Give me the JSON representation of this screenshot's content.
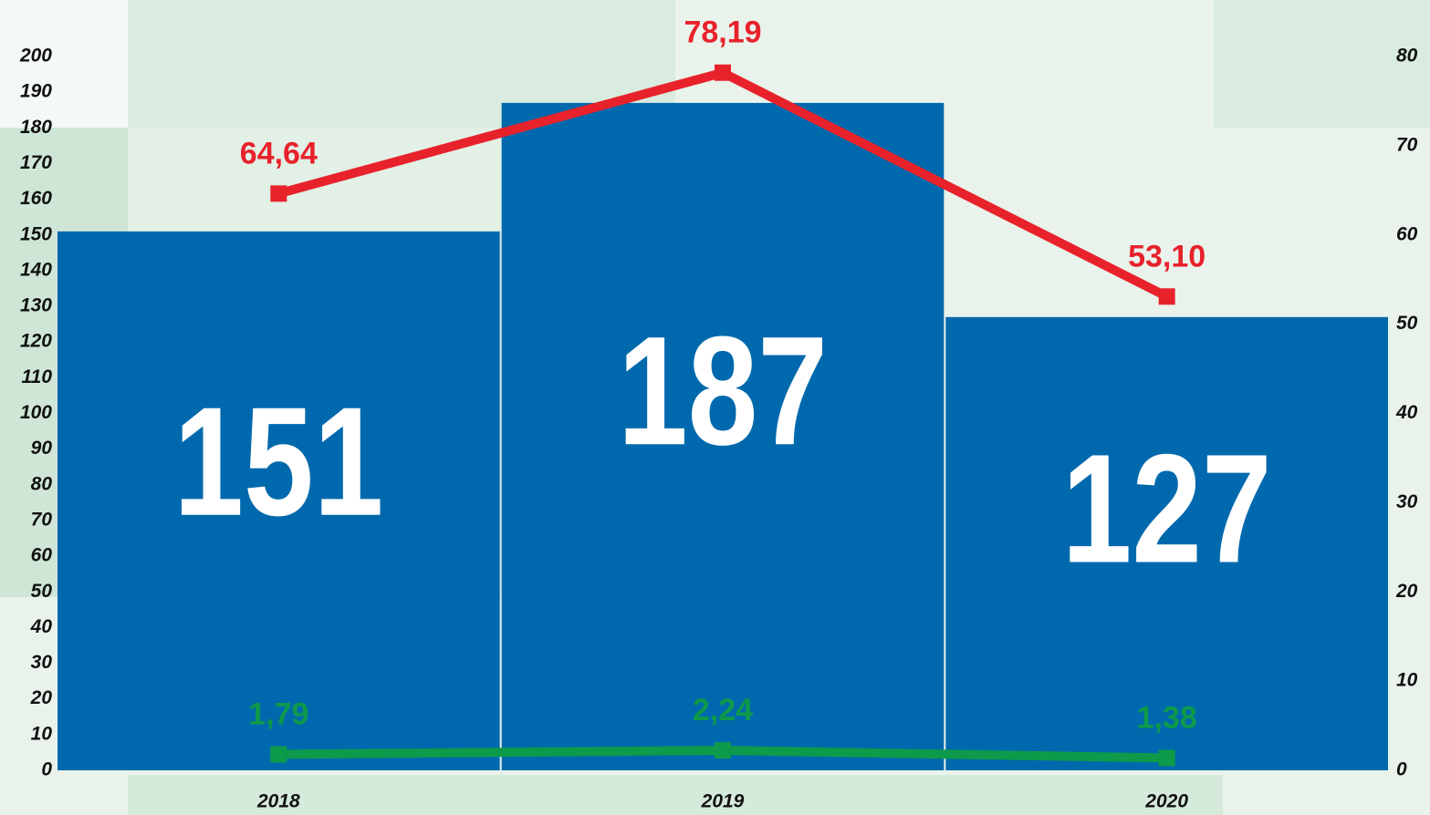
{
  "chart_data": {
    "type": "bar",
    "categories": [
      "2018",
      "2019",
      "2020"
    ],
    "values": [
      151,
      187,
      127
    ],
    "color": "#0069ad",
    "ylim": [
      0,
      200
    ],
    "yticks": [
      0,
      10,
      20,
      30,
      40,
      50,
      60,
      70,
      80,
      90,
      100,
      110,
      120,
      130,
      140,
      150,
      160,
      170,
      180,
      190,
      200
    ],
    "y2lim": [
      0,
      80
    ],
    "y2ticks": [
      0,
      10,
      20,
      30,
      40,
      50,
      60,
      70,
      80
    ],
    "series": [
      {
        "type": "line",
        "axis": "y2",
        "color": "#e8222b",
        "values": [
          64.64,
          78.19,
          53.1
        ],
        "value_labels": [
          "64,64",
          "78,19",
          "53,10"
        ]
      },
      {
        "type": "line",
        "axis": "y2",
        "color": "#0d9a4a",
        "values": [
          1.79,
          2.24,
          1.38
        ],
        "value_labels": [
          "1,79",
          "2,24",
          "1,38"
        ]
      }
    ],
    "grid": false
  }
}
